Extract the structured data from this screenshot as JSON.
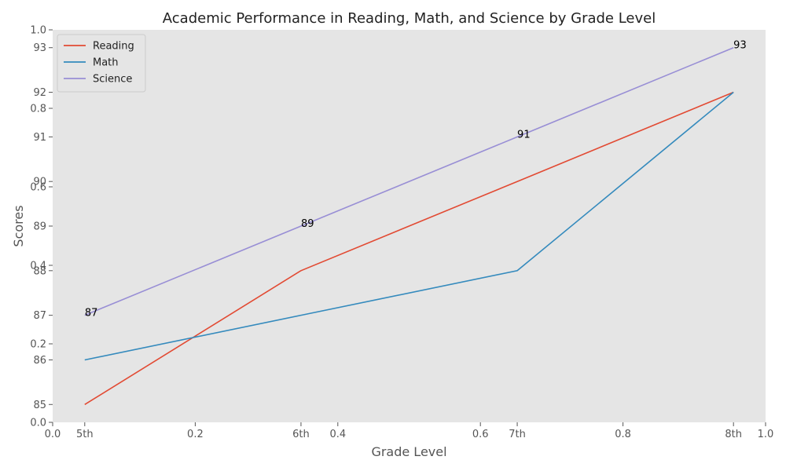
{
  "chart_data": {
    "type": "line",
    "title": "Academic Performance in Reading, Math, and Science by Grade Level",
    "xlabel": "Grade Level",
    "ylabel": "Scores",
    "categories": [
      "5th",
      "6th",
      "7th",
      "8th"
    ],
    "series": [
      {
        "name": "Reading",
        "values": [
          85,
          88,
          90,
          92
        ],
        "color": "#E24A33"
      },
      {
        "name": "Math",
        "values": [
          86,
          87,
          88,
          92
        ],
        "color": "#348ABD"
      },
      {
        "name": "Science",
        "values": [
          87,
          89,
          91,
          93
        ],
        "color": "#988ED5"
      }
    ],
    "annotations": [
      "87",
      "89",
      "91",
      "93"
    ],
    "ylim": [
      84.6,
      93.4
    ],
    "yticks": [
      "85",
      "86",
      "87",
      "88",
      "89",
      "90",
      "91",
      "92",
      "93"
    ],
    "overlay_axis_ticks": [
      "0.0",
      "0.2",
      "0.4",
      "0.6",
      "0.8",
      "1.0"
    ],
    "grid": false,
    "legend_position": "top-left",
    "background": "#E5E5E5"
  }
}
